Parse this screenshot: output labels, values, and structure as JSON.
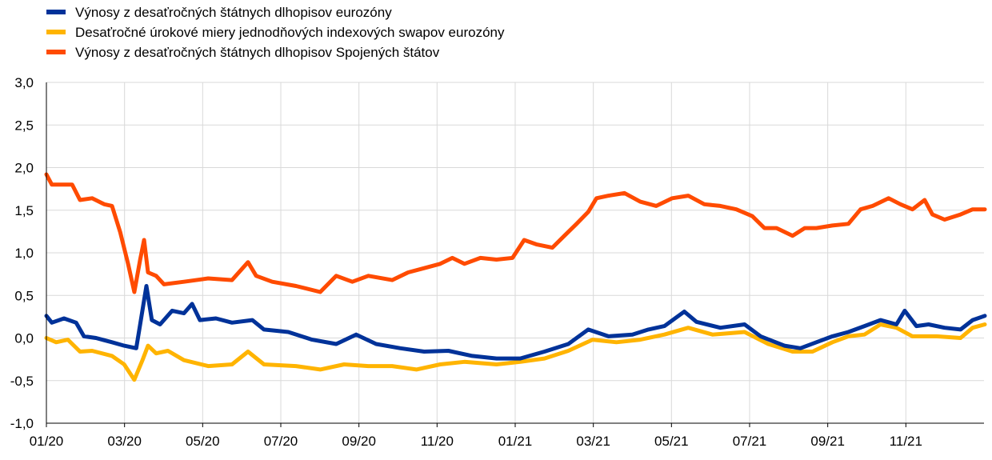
{
  "chart_data": {
    "type": "line",
    "title": "",
    "xlabel": "",
    "ylabel": "",
    "x_unit": "months since 01/20",
    "xlim": [
      0,
      24
    ],
    "ylim": [
      -1.0,
      3.0
    ],
    "yticks": [
      -1.0,
      -0.5,
      0.0,
      0.5,
      1.0,
      1.5,
      2.0,
      2.5,
      3.0
    ],
    "ytick_labels": [
      "-1,0",
      "-0,5",
      "0,0",
      "0,5",
      "1,0",
      "1,5",
      "2,0",
      "2,5",
      "3,0"
    ],
    "xticks": [
      0,
      2,
      4,
      6,
      8,
      10,
      12,
      14,
      16,
      18,
      20,
      22
    ],
    "xtick_labels": [
      "01/20",
      "03/20",
      "05/20",
      "07/20",
      "09/20",
      "11/20",
      "01/21",
      "03/21",
      "05/21",
      "07/21",
      "09/21",
      "11/21"
    ],
    "grid": true,
    "legend_position": "top-left",
    "series": [
      {
        "name": "Výnosy z desaťročných štátnych dlhopisov eurozóny",
        "color": "#003299",
        "points": [
          [
            0,
            0.26
          ],
          [
            0.14,
            0.18
          ],
          [
            0.45,
            0.23
          ],
          [
            0.76,
            0.18
          ],
          [
            0.96,
            0.02
          ],
          [
            1.27,
            0.0
          ],
          [
            1.68,
            -0.05
          ],
          [
            1.99,
            -0.09
          ],
          [
            2.3,
            -0.12
          ],
          [
            2.4,
            0.16
          ],
          [
            2.56,
            0.61
          ],
          [
            2.7,
            0.21
          ],
          [
            2.91,
            0.16
          ],
          [
            3.22,
            0.32
          ],
          [
            3.52,
            0.29
          ],
          [
            3.73,
            0.4
          ],
          [
            3.93,
            0.21
          ],
          [
            4.34,
            0.23
          ],
          [
            4.75,
            0.18
          ],
          [
            5.27,
            0.21
          ],
          [
            5.57,
            0.1
          ],
          [
            6.19,
            0.07
          ],
          [
            6.8,
            -0.02
          ],
          [
            7.42,
            -0.07
          ],
          [
            7.93,
            0.04
          ],
          [
            8.44,
            -0.07
          ],
          [
            9.06,
            -0.12
          ],
          [
            9.67,
            -0.16
          ],
          [
            10.29,
            -0.15
          ],
          [
            10.9,
            -0.21
          ],
          [
            11.52,
            -0.24
          ],
          [
            12.13,
            -0.24
          ],
          [
            12.75,
            -0.16
          ],
          [
            13.36,
            -0.07
          ],
          [
            13.87,
            0.1
          ],
          [
            14.39,
            0.02
          ],
          [
            15.0,
            0.04
          ],
          [
            15.41,
            0.1
          ],
          [
            15.82,
            0.14
          ],
          [
            16.33,
            0.31
          ],
          [
            16.64,
            0.19
          ],
          [
            17.25,
            0.12
          ],
          [
            17.87,
            0.16
          ],
          [
            18.28,
            0.02
          ],
          [
            18.89,
            -0.09
          ],
          [
            19.3,
            -0.12
          ],
          [
            19.71,
            -0.05
          ],
          [
            20.12,
            0.02
          ],
          [
            20.53,
            0.07
          ],
          [
            20.94,
            0.14
          ],
          [
            21.35,
            0.21
          ],
          [
            21.76,
            0.16
          ],
          [
            21.97,
            0.32
          ],
          [
            22.27,
            0.14
          ],
          [
            22.58,
            0.16
          ],
          [
            22.99,
            0.12
          ],
          [
            23.4,
            0.1
          ],
          [
            23.71,
            0.21
          ],
          [
            24.02,
            0.26
          ]
        ]
      },
      {
        "name": "Desaťročné úrokové miery jednodňových indexových swapov eurozóny",
        "color": "#FFB400",
        "points": [
          [
            0,
            0.0
          ],
          [
            0.25,
            -0.05
          ],
          [
            0.55,
            -0.02
          ],
          [
            0.86,
            -0.16
          ],
          [
            1.17,
            -0.15
          ],
          [
            1.68,
            -0.21
          ],
          [
            1.99,
            -0.31
          ],
          [
            2.25,
            -0.49
          ],
          [
            2.46,
            -0.26
          ],
          [
            2.6,
            -0.09
          ],
          [
            2.81,
            -0.18
          ],
          [
            3.11,
            -0.15
          ],
          [
            3.52,
            -0.26
          ],
          [
            4.14,
            -0.33
          ],
          [
            4.75,
            -0.31
          ],
          [
            5.16,
            -0.16
          ],
          [
            5.57,
            -0.31
          ],
          [
            6.39,
            -0.33
          ],
          [
            7.01,
            -0.37
          ],
          [
            7.62,
            -0.31
          ],
          [
            8.24,
            -0.33
          ],
          [
            8.85,
            -0.33
          ],
          [
            9.47,
            -0.37
          ],
          [
            10.08,
            -0.31
          ],
          [
            10.7,
            -0.28
          ],
          [
            11.52,
            -0.31
          ],
          [
            12.13,
            -0.28
          ],
          [
            12.75,
            -0.24
          ],
          [
            13.36,
            -0.15
          ],
          [
            13.98,
            -0.02
          ],
          [
            14.59,
            -0.05
          ],
          [
            15.2,
            -0.02
          ],
          [
            15.82,
            0.04
          ],
          [
            16.43,
            0.12
          ],
          [
            17.05,
            0.04
          ],
          [
            17.87,
            0.07
          ],
          [
            18.48,
            -0.07
          ],
          [
            19.1,
            -0.16
          ],
          [
            19.61,
            -0.16
          ],
          [
            20.12,
            -0.05
          ],
          [
            20.53,
            0.02
          ],
          [
            20.94,
            0.04
          ],
          [
            21.35,
            0.16
          ],
          [
            21.76,
            0.12
          ],
          [
            22.17,
            0.02
          ],
          [
            22.79,
            0.02
          ],
          [
            23.4,
            0.0
          ],
          [
            23.71,
            0.12
          ],
          [
            24.02,
            0.16
          ]
        ]
      },
      {
        "name": "Výnosy z desaťročných štátnych dlhopisov Spojených štátov",
        "color": "#FF4B00",
        "points": [
          [
            0,
            1.92
          ],
          [
            0.14,
            1.8
          ],
          [
            0.66,
            1.8
          ],
          [
            0.86,
            1.62
          ],
          [
            1.17,
            1.64
          ],
          [
            1.48,
            1.57
          ],
          [
            1.68,
            1.55
          ],
          [
            1.89,
            1.24
          ],
          [
            2.09,
            0.87
          ],
          [
            2.25,
            0.54
          ],
          [
            2.4,
            0.92
          ],
          [
            2.5,
            1.15
          ],
          [
            2.6,
            0.77
          ],
          [
            2.81,
            0.73
          ],
          [
            3.01,
            0.63
          ],
          [
            3.52,
            0.66
          ],
          [
            4.14,
            0.7
          ],
          [
            4.75,
            0.68
          ],
          [
            5.16,
            0.89
          ],
          [
            5.37,
            0.73
          ],
          [
            5.78,
            0.66
          ],
          [
            6.39,
            0.61
          ],
          [
            7.01,
            0.54
          ],
          [
            7.42,
            0.73
          ],
          [
            7.83,
            0.66
          ],
          [
            8.24,
            0.73
          ],
          [
            8.85,
            0.68
          ],
          [
            9.26,
            0.77
          ],
          [
            9.67,
            0.82
          ],
          [
            10.08,
            0.87
          ],
          [
            10.39,
            0.94
          ],
          [
            10.7,
            0.87
          ],
          [
            11.11,
            0.94
          ],
          [
            11.52,
            0.92
          ],
          [
            11.93,
            0.94
          ],
          [
            12.23,
            1.15
          ],
          [
            12.54,
            1.1
          ],
          [
            12.95,
            1.06
          ],
          [
            13.26,
            1.2
          ],
          [
            13.57,
            1.34
          ],
          [
            13.87,
            1.48
          ],
          [
            14.08,
            1.64
          ],
          [
            14.39,
            1.67
          ],
          [
            14.8,
            1.7
          ],
          [
            15.2,
            1.6
          ],
          [
            15.61,
            1.55
          ],
          [
            16.02,
            1.64
          ],
          [
            16.43,
            1.67
          ],
          [
            16.84,
            1.57
          ],
          [
            17.25,
            1.55
          ],
          [
            17.66,
            1.51
          ],
          [
            18.07,
            1.43
          ],
          [
            18.38,
            1.29
          ],
          [
            18.69,
            1.29
          ],
          [
            19.1,
            1.2
          ],
          [
            19.41,
            1.29
          ],
          [
            19.71,
            1.29
          ],
          [
            20.12,
            1.32
          ],
          [
            20.53,
            1.34
          ],
          [
            20.84,
            1.51
          ],
          [
            21.15,
            1.55
          ],
          [
            21.56,
            1.64
          ],
          [
            21.86,
            1.57
          ],
          [
            22.17,
            1.51
          ],
          [
            22.48,
            1.62
          ],
          [
            22.68,
            1.45
          ],
          [
            22.99,
            1.39
          ],
          [
            23.4,
            1.45
          ],
          [
            23.71,
            1.51
          ],
          [
            24.02,
            1.51
          ]
        ]
      }
    ]
  }
}
